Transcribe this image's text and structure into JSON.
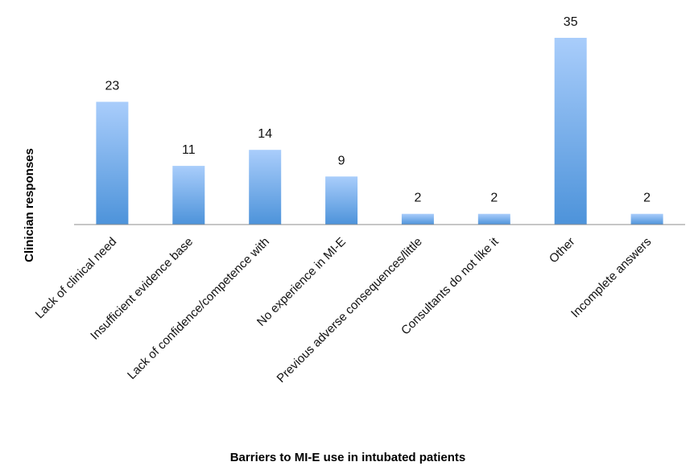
{
  "chart_data": {
    "type": "bar",
    "title": "",
    "xlabel": "Barriers to MI-E use in intubated patients",
    "ylabel": "Clinician responses",
    "categories": [
      "Lack of clinical need",
      "Insufficient evidence base",
      "Lack of confidence/competence with",
      "No experience in MI-E",
      "Previous adverse consequences/little",
      "Consultants do not like it",
      "Other",
      "Incomplete answers"
    ],
    "values": [
      23,
      11,
      14,
      9,
      2,
      2,
      35,
      2
    ],
    "ylim": [
      0,
      35
    ],
    "grid": false,
    "legend": "none",
    "colors": {
      "bar_top": "#a9cdfb",
      "bar_bottom": "#4d93da",
      "axis": "#8c8c8c"
    }
  }
}
